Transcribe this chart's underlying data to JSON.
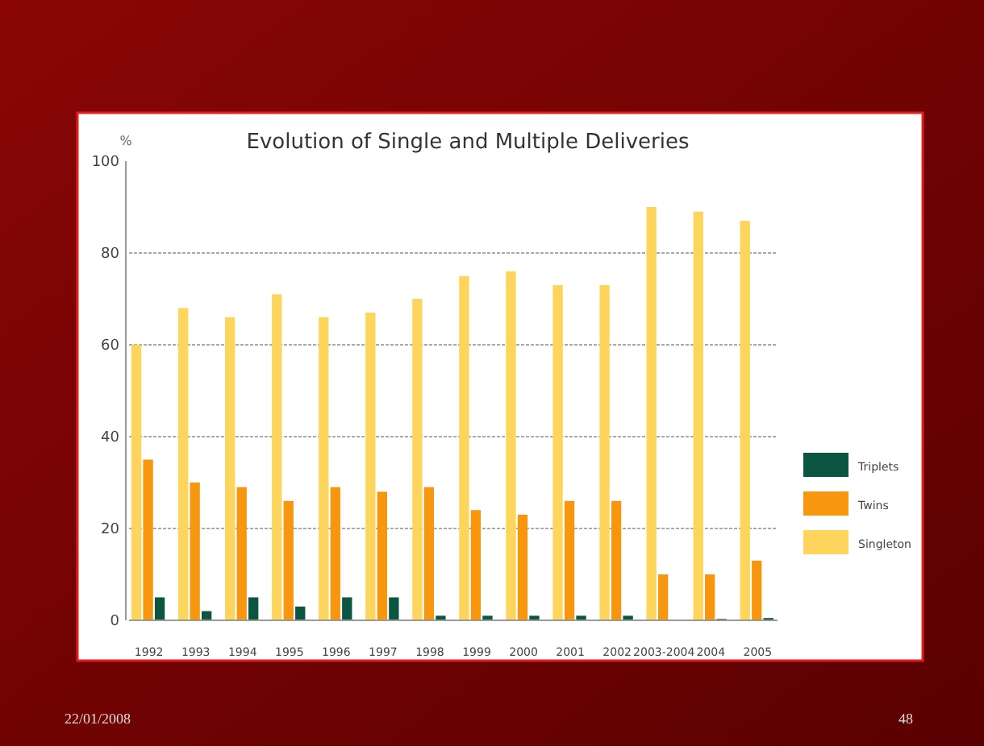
{
  "chart_data": {
    "type": "bar",
    "title": "Evolution of Single and Multiple Deliveries",
    "ylabel": "%",
    "categories": [
      "1992",
      "1993",
      "1994",
      "1995",
      "1996",
      "1997",
      "1998",
      "1999",
      "2000",
      "2001",
      "2002",
      "2003-2004",
      "2004",
      "2005"
    ],
    "series": [
      {
        "name": "Singleton",
        "color": "#fdd55c",
        "values": [
          60,
          68,
          66,
          71,
          66,
          67,
          70,
          75,
          76,
          73,
          73,
          90,
          89,
          87
        ]
      },
      {
        "name": "Twins",
        "color": "#f7960f",
        "values": [
          35,
          30,
          29,
          26,
          29,
          28,
          29,
          24,
          23,
          26,
          26,
          10,
          10,
          13
        ]
      },
      {
        "name": "Triplets",
        "color": "#0d5543",
        "values": [
          5,
          2,
          5,
          3,
          5,
          5,
          1,
          1,
          1,
          1,
          1,
          0,
          0.3,
          0.5
        ]
      }
    ],
    "ylim": [
      0,
      100
    ],
    "yticks": [
      0,
      20,
      40,
      60,
      80,
      100
    ],
    "grid": "y",
    "legend": "right",
    "annotations": [
      "22/01/2008",
      "48"
    ]
  }
}
